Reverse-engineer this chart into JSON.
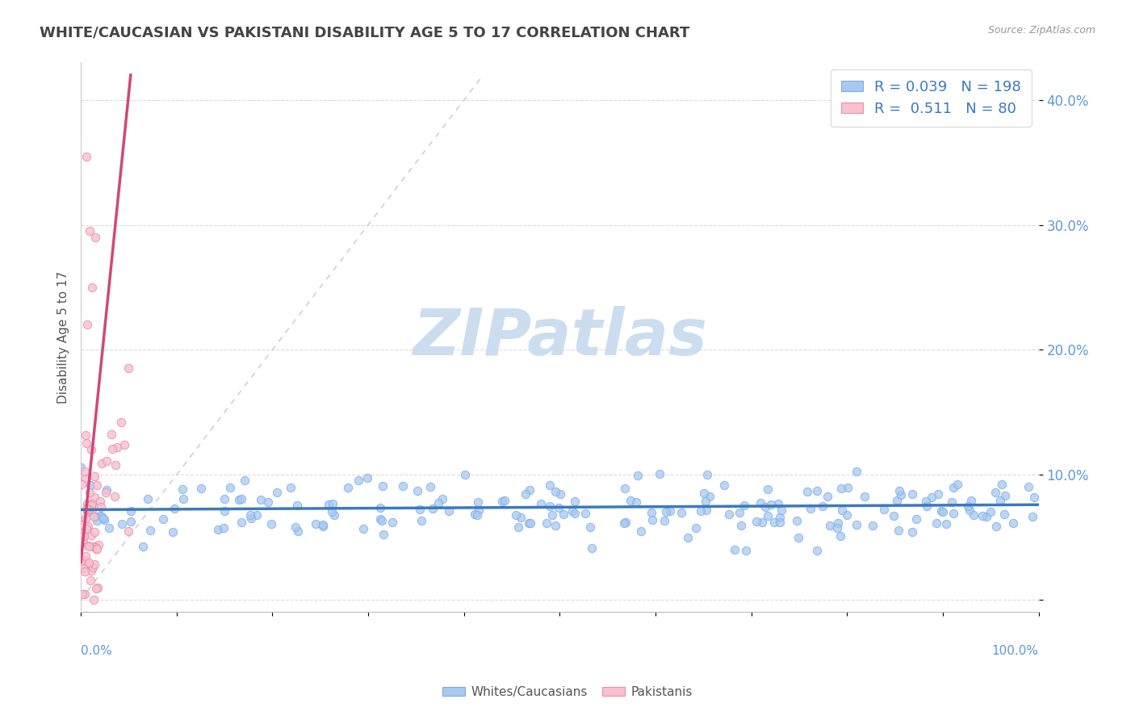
{
  "title": "WHITE/CAUCASIAN VS PAKISTANI DISABILITY AGE 5 TO 17 CORRELATION CHART",
  "source": "Source: ZipAtlas.com",
  "ylabel": "Disability Age 5 to 17",
  "ytick_vals": [
    0.0,
    0.1,
    0.2,
    0.3,
    0.4
  ],
  "ytick_labels": [
    "",
    "10.0%",
    "20.0%",
    "30.0%",
    "40.0%"
  ],
  "xlim": [
    0.0,
    1.0
  ],
  "ylim": [
    -0.01,
    0.43
  ],
  "blue_R": 0.039,
  "blue_N": 198,
  "pink_R": 0.511,
  "pink_N": 80,
  "blue_marker_color": "#a8c8f0",
  "blue_marker_edge": "#7aaee8",
  "pink_marker_color": "#f8c0d0",
  "pink_marker_edge": "#e890a8",
  "blue_line_color": "#3a7abf",
  "pink_line_color": "#d04878",
  "diag_color": "#c8c8c8",
  "legend_label_blue": "Whites/Caucasians",
  "legend_label_pink": "Pakistanis",
  "watermark": "ZIPatlas",
  "watermark_color": "#ccddf0",
  "background_color": "#ffffff",
  "grid_color": "#d8d8d8",
  "title_color": "#444444",
  "tick_color": "#5b9bd5",
  "source_color": "#999999",
  "ylabel_color": "#555555",
  "seed": 12345
}
